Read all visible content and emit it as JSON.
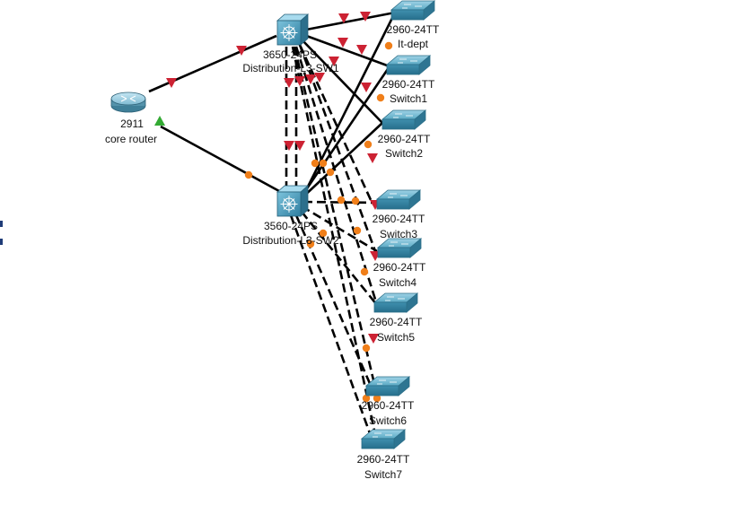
{
  "devices": {
    "core_router": {
      "model": "2911",
      "name": "core router",
      "icon": "router-icon"
    },
    "dist_sw1": {
      "model": "3650-24PS",
      "name": "Distribution-L3-SW1",
      "icon": "multilayer-switch-icon"
    },
    "dist_sw2": {
      "model": "3560-24PS",
      "name": "Distribution-L3-SW2",
      "icon": "multilayer-switch-icon"
    },
    "access": [
      {
        "model": "2960-24TT",
        "name": "It-dept",
        "icon": "switch-icon"
      },
      {
        "model": "2960-24TT",
        "name": "Switch1",
        "icon": "switch-icon"
      },
      {
        "model": "2960-24TT",
        "name": "Switch2",
        "icon": "switch-icon"
      },
      {
        "model": "2960-24TT",
        "name": "Switch3",
        "icon": "switch-icon"
      },
      {
        "model": "2960-24TT",
        "name": "Switch4",
        "icon": "switch-icon"
      },
      {
        "model": "2960-24TT",
        "name": "Switch5",
        "icon": "switch-icon"
      },
      {
        "model": "2960-24TT",
        "name": "Switch6",
        "icon": "switch-icon"
      },
      {
        "model": "2960-24TT",
        "name": "Switch7",
        "icon": "switch-icon"
      }
    ]
  },
  "link_status_colors": {
    "down": "#cc2233",
    "up": "#33aa33",
    "blocking": "#f07f1a"
  },
  "link_colors": {
    "cable": "#000000"
  }
}
